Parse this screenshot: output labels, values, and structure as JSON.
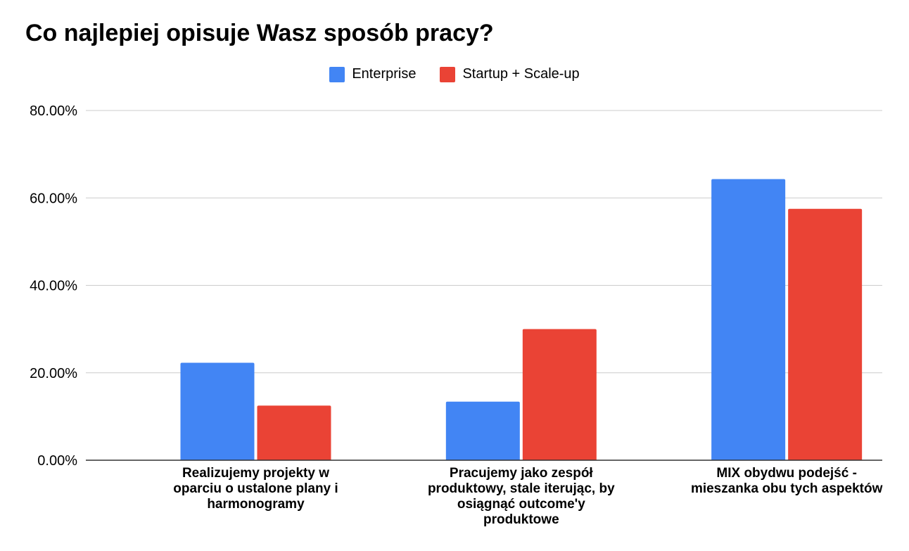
{
  "chart_data": {
    "type": "bar",
    "title": "Co najlepiej opisuje Wasz sposób pracy?",
    "categories": [
      "Realizujemy projekty w\noparciu o ustalone plany i\nharmonogramy",
      "Pracujemy jako zespół\nproduktowy, stale iterując, by\nosiągnąć outcome'y\nproduktowe",
      "MIX obydwu podejść -\nmieszanka obu tych aspektów"
    ],
    "series": [
      {
        "name": "Enterprise",
        "color": "#4285F4",
        "values": [
          22.3,
          13.4,
          64.3
        ]
      },
      {
        "name": "Startup + Scale-up",
        "color": "#EA4335",
        "values": [
          12.5,
          30.0,
          57.5
        ]
      }
    ],
    "ylim": [
      0,
      80
    ],
    "yticks": [
      0,
      20,
      40,
      60,
      80
    ],
    "ytick_labels": [
      "0.00%",
      "20.00%",
      "40.00%",
      "60.00%",
      "80.00%"
    ],
    "legend_position": "top-center",
    "grid": true
  }
}
